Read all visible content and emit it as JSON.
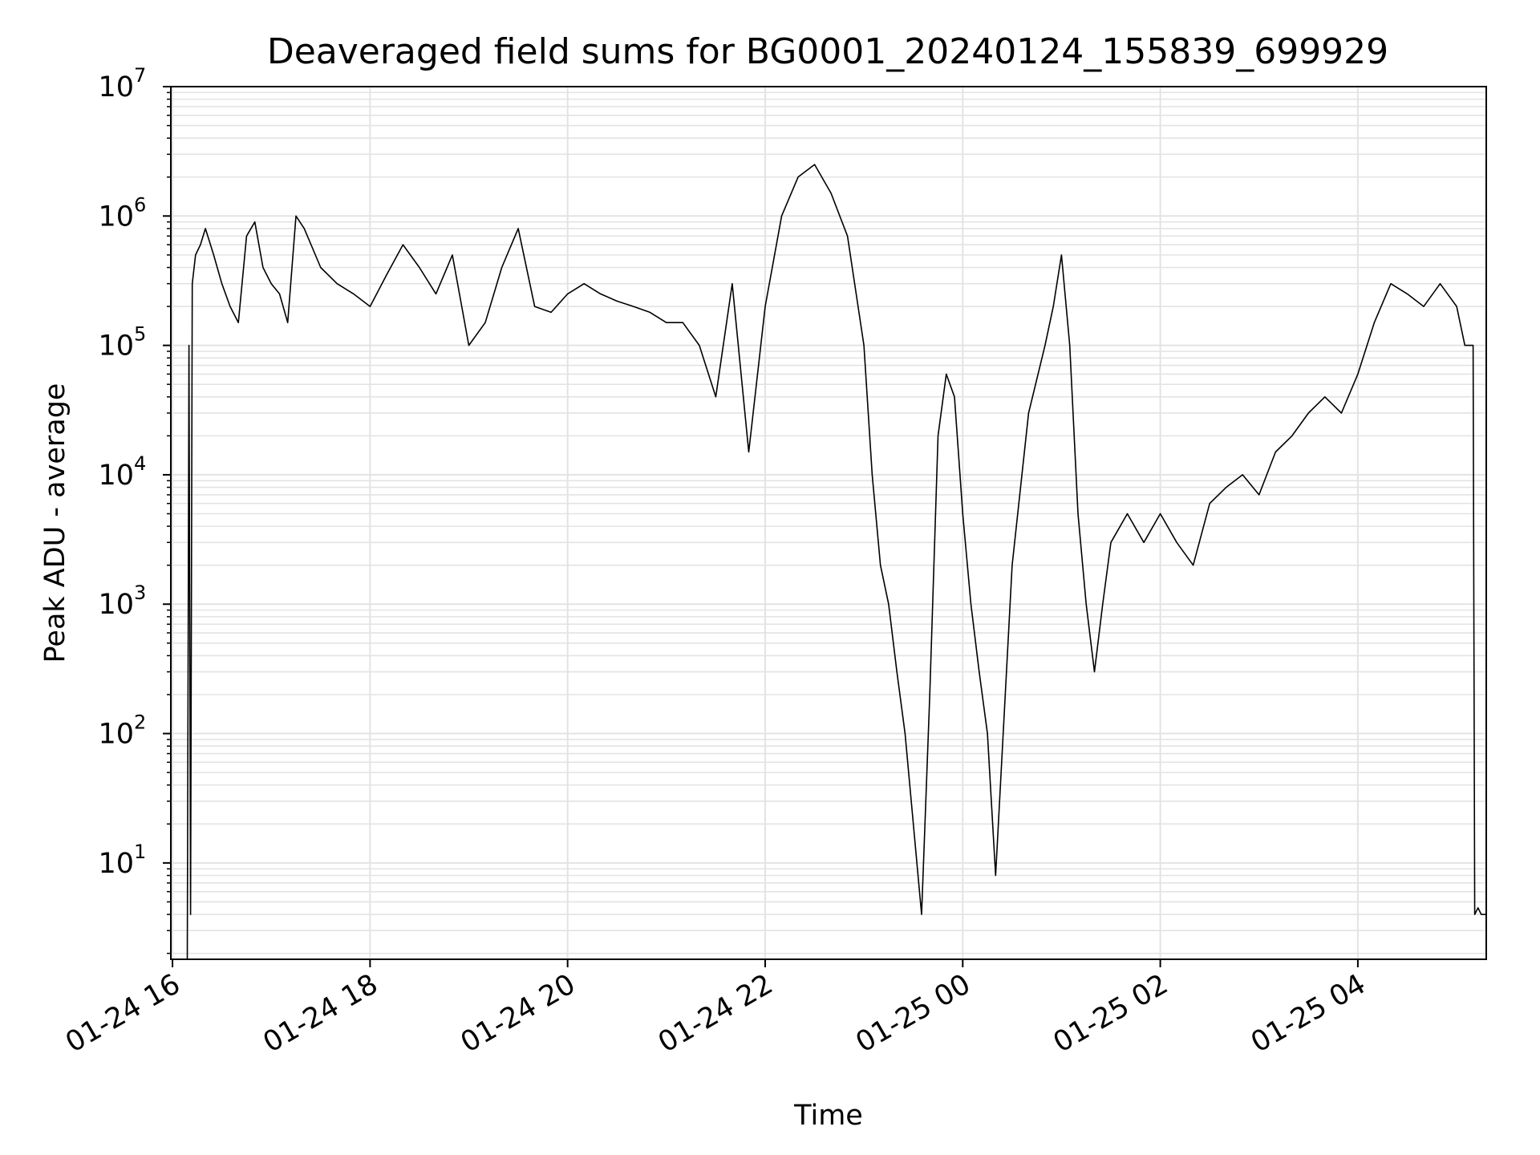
{
  "chart_data": {
    "type": "line",
    "title": "Deaveraged field sums for BG0001_20240124_155839_699929",
    "xlabel": "Time",
    "ylabel": "Peak ADU - average",
    "yscale": "log",
    "ylim": [
      1.8,
      10000000
    ],
    "xlim": [
      "2024-01-24 15:59",
      "2024-01-25 05:18"
    ],
    "grid": true,
    "legend": "none",
    "line_color": "#000000",
    "x_tick_labels": [
      "01-24 16",
      "01-24 18",
      "01-24 20",
      "01-24 22",
      "01-25 00",
      "01-25 02",
      "01-25 04"
    ],
    "x_ticks": [
      "2024-01-24 16:00",
      "2024-01-24 18:00",
      "2024-01-24 20:00",
      "2024-01-24 22:00",
      "2024-01-25 00:00",
      "2024-01-25 02:00",
      "2024-01-25 04:00"
    ],
    "y_ticks": [
      {
        "base": "10",
        "exp": "1",
        "value": 10
      },
      {
        "base": "10",
        "exp": "2",
        "value": 100
      },
      {
        "base": "10",
        "exp": "3",
        "value": 1000
      },
      {
        "base": "10",
        "exp": "4",
        "value": 10000
      },
      {
        "base": "10",
        "exp": "5",
        "value": 100000
      },
      {
        "base": "10",
        "exp": "6",
        "value": 1000000
      },
      {
        "base": "10",
        "exp": "7",
        "value": 10000000
      }
    ],
    "series": [
      {
        "x": [
          "2024-01-24 16:09",
          "2024-01-24 16:10",
          "2024-01-24 16:11",
          "2024-01-24 16:12",
          "2024-01-24 16:14",
          "2024-01-24 16:17",
          "2024-01-24 16:20",
          "2024-01-24 16:25",
          "2024-01-24 16:30",
          "2024-01-24 16:35",
          "2024-01-24 16:40",
          "2024-01-24 16:45",
          "2024-01-24 16:50",
          "2024-01-24 16:55",
          "2024-01-24 17:00",
          "2024-01-24 17:05",
          "2024-01-24 17:10",
          "2024-01-24 17:15",
          "2024-01-24 17:20",
          "2024-01-24 17:30",
          "2024-01-24 17:40",
          "2024-01-24 17:50",
          "2024-01-24 18:00",
          "2024-01-24 18:10",
          "2024-01-24 18:20",
          "2024-01-24 18:30",
          "2024-01-24 18:40",
          "2024-01-24 18:50",
          "2024-01-24 19:00",
          "2024-01-24 19:10",
          "2024-01-24 19:20",
          "2024-01-24 19:30",
          "2024-01-24 19:40",
          "2024-01-24 19:50",
          "2024-01-24 20:00",
          "2024-01-24 20:10",
          "2024-01-24 20:20",
          "2024-01-24 20:30",
          "2024-01-24 20:40",
          "2024-01-24 20:50",
          "2024-01-24 21:00",
          "2024-01-24 21:10",
          "2024-01-24 21:20",
          "2024-01-24 21:30",
          "2024-01-24 21:40",
          "2024-01-24 21:50",
          "2024-01-24 22:00",
          "2024-01-24 22:10",
          "2024-01-24 22:20",
          "2024-01-24 22:30",
          "2024-01-24 22:40",
          "2024-01-24 22:50",
          "2024-01-24 23:00",
          "2024-01-24 23:05",
          "2024-01-24 23:10",
          "2024-01-24 23:15",
          "2024-01-24 23:20",
          "2024-01-24 23:25",
          "2024-01-24 23:30",
          "2024-01-24 23:35",
          "2024-01-24 23:40",
          "2024-01-24 23:45",
          "2024-01-24 23:50",
          "2024-01-24 23:55",
          "2024-01-25 00:00",
          "2024-01-25 00:05",
          "2024-01-25 00:10",
          "2024-01-25 00:15",
          "2024-01-25 00:20",
          "2024-01-25 00:30",
          "2024-01-25 00:40",
          "2024-01-25 00:50",
          "2024-01-25 00:55",
          "2024-01-25 01:00",
          "2024-01-25 01:05",
          "2024-01-25 01:10",
          "2024-01-25 01:15",
          "2024-01-25 01:20",
          "2024-01-25 01:25",
          "2024-01-25 01:30",
          "2024-01-25 01:40",
          "2024-01-25 01:50",
          "2024-01-25 02:00",
          "2024-01-25 02:10",
          "2024-01-25 02:20",
          "2024-01-25 02:30",
          "2024-01-25 02:40",
          "2024-01-25 02:50",
          "2024-01-25 03:00",
          "2024-01-25 03:10",
          "2024-01-25 03:20",
          "2024-01-25 03:30",
          "2024-01-25 03:40",
          "2024-01-25 03:50",
          "2024-01-25 04:00",
          "2024-01-25 04:10",
          "2024-01-25 04:20",
          "2024-01-25 04:30",
          "2024-01-25 04:40",
          "2024-01-25 04:50",
          "2024-01-25 05:00",
          "2024-01-25 05:05",
          "2024-01-25 05:10",
          "2024-01-25 05:11",
          "2024-01-25 05:13",
          "2024-01-25 05:15",
          "2024-01-25 05:18"
        ],
        "y": [
          1.8,
          100000,
          4,
          300000,
          500000,
          600000,
          800000,
          500000,
          300000,
          200000,
          150000,
          700000,
          900000,
          400000,
          300000,
          250000,
          150000,
          1000000,
          800000,
          400000,
          300000,
          250000,
          200000,
          350000,
          600000,
          400000,
          250000,
          500000,
          100000,
          150000,
          400000,
          800000,
          200000,
          180000,
          250000,
          300000,
          250000,
          220000,
          200000,
          180000,
          150000,
          150000,
          100000,
          40000,
          300000,
          15000,
          200000,
          1000000,
          2000000,
          2500000,
          1500000,
          700000,
          100000,
          10000,
          2000,
          1000,
          300,
          100,
          20,
          4,
          200,
          20000,
          60000,
          40000,
          5000,
          1000,
          300,
          100,
          8,
          2000,
          30000,
          100000,
          200000,
          500000,
          100000,
          5000,
          1000,
          300,
          1000,
          3000,
          5000,
          3000,
          5000,
          3000,
          2000,
          6000,
          8000,
          10000,
          7000,
          15000,
          20000,
          30000,
          40000,
          30000,
          60000,
          150000,
          300000,
          250000,
          200000,
          300000,
          200000,
          100000,
          100000,
          4,
          4.5,
          4,
          4
        ]
      }
    ]
  }
}
